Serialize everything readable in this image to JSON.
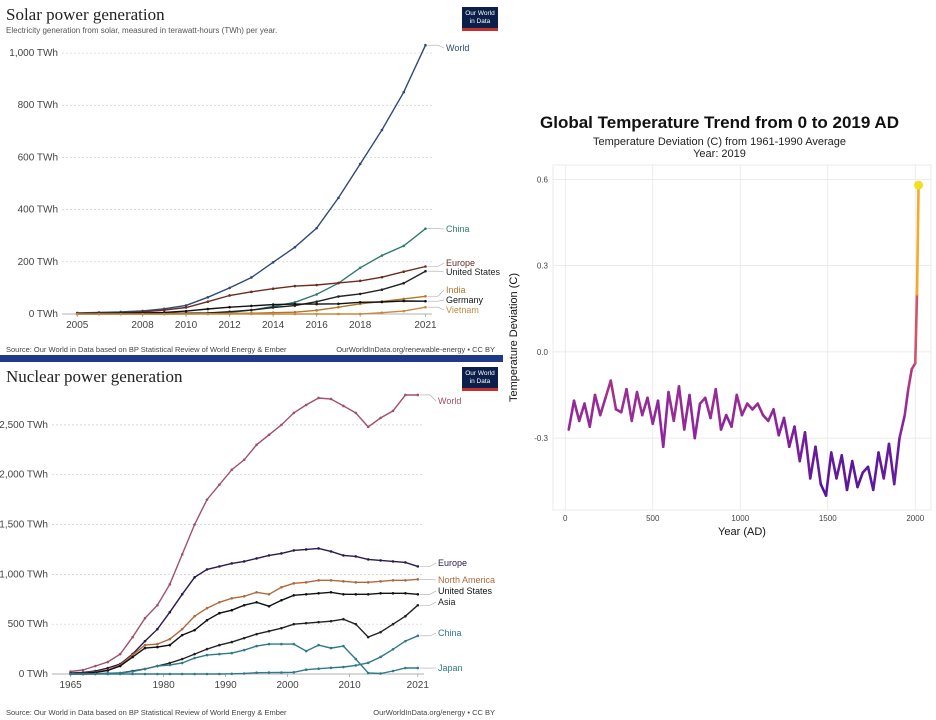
{
  "chart_data": [
    {
      "type": "line",
      "title": "Solar power generation",
      "subtitle": "Electricity generation from solar, measured in terawatt-hours (TWh) per year.",
      "source_left": "Source: Our World in Data based on BP Statistical Review of World Energy & Ember",
      "source_right": "OurWorldInData.org/renewable-energy • CC BY",
      "logo": [
        "Our World",
        "in Data"
      ],
      "x": [
        2005,
        2006,
        2007,
        2008,
        2009,
        2010,
        2011,
        2012,
        2013,
        2014,
        2015,
        2016,
        2017,
        2018,
        2019,
        2020,
        2021
      ],
      "xticks": [
        "2005",
        "2008",
        "2010",
        "2012",
        "2014",
        "2016",
        "2018",
        "2021"
      ],
      "xtick_values": [
        2005,
        2008,
        2010,
        2012,
        2014,
        2016,
        2018,
        2021
      ],
      "yticks": [
        "0 TWh",
        "200 TWh",
        "400 TWh",
        "600 TWh",
        "800 TWh",
        "1,000 TWh"
      ],
      "ytick_values": [
        0,
        200,
        400,
        600,
        800,
        1000
      ],
      "xlim": [
        2004.3,
        2021.3
      ],
      "ylim": [
        0,
        1050
      ],
      "series": [
        {
          "name": "World",
          "color": "#2d4b75",
          "values": [
            4,
            6,
            8,
            12,
            20,
            33,
            64,
            100,
            140,
            198,
            256,
            329,
            445,
            575,
            705,
            850,
            1030
          ]
        },
        {
          "name": "China",
          "color": "#2f7a6e",
          "values": [
            0,
            0,
            0,
            0,
            0,
            1,
            3,
            6,
            15,
            29,
            45,
            75,
            118,
            177,
            224,
            261,
            327
          ]
        },
        {
          "name": "Europe",
          "color": "#6b2d1f",
          "values": [
            2,
            3,
            4,
            8,
            15,
            25,
            47,
            71,
            85,
            97,
            107,
            111,
            119,
            127,
            141,
            162,
            182
          ]
        },
        {
          "name": "United States",
          "color": "#222222",
          "values": [
            1,
            1,
            1,
            2,
            2,
            3,
            4,
            9,
            15,
            25,
            32,
            47,
            67,
            77,
            93,
            118,
            164
          ]
        },
        {
          "name": "India",
          "color": "#b0762a",
          "values": [
            0,
            0,
            0,
            0,
            0,
            0,
            1,
            2,
            3,
            5,
            7,
            14,
            26,
            39,
            48,
            58,
            68
          ]
        },
        {
          "name": "Germany",
          "color": "#111111",
          "values": [
            1,
            2,
            3,
            4,
            6,
            11,
            19,
            26,
            31,
            36,
            38,
            38,
            39,
            45,
            46,
            50,
            49
          ]
        },
        {
          "name": "Vietnam",
          "color": "#c98a3a",
          "values": [
            0,
            0,
            0,
            0,
            0,
            0,
            0,
            0,
            0,
            0,
            0,
            0,
            0,
            0,
            5,
            11,
            26
          ]
        }
      ]
    },
    {
      "type": "line",
      "title": "Nuclear power generation",
      "source_left": "Source: Our World in Data based on BP Statistical Review of World Energy & Ember",
      "source_right": "OurWorldInData.org/energy • CC BY",
      "logo": [
        "Our World",
        "in Data"
      ],
      "x": [
        1965,
        1967,
        1969,
        1971,
        1973,
        1975,
        1977,
        1979,
        1981,
        1983,
        1985,
        1987,
        1989,
        1991,
        1993,
        1995,
        1997,
        1999,
        2001,
        2003,
        2005,
        2007,
        2009,
        2011,
        2013,
        2015,
        2017,
        2019,
        2021
      ],
      "xticks": [
        "1965",
        "1980",
        "1990",
        "2000",
        "2010",
        "2021"
      ],
      "xtick_values": [
        1965,
        1980,
        1990,
        2000,
        2010,
        2021
      ],
      "yticks": [
        "0 TWh",
        "500 TWh",
        "1,000 TWh",
        "1,500 TWh",
        "2,000 TWh",
        "2,500 TWh"
      ],
      "ytick_values": [
        0,
        500,
        1000,
        1500,
        2000,
        2500
      ],
      "xlim": [
        1962,
        2022
      ],
      "ylim": [
        0,
        2850
      ],
      "series": [
        {
          "name": "World",
          "color": "#a0506a",
          "values": [
            25,
            40,
            80,
            120,
            200,
            370,
            560,
            690,
            900,
            1200,
            1500,
            1750,
            1900,
            2050,
            2150,
            2300,
            2400,
            2500,
            2620,
            2700,
            2770,
            2760,
            2690,
            2620,
            2480,
            2570,
            2640,
            2800,
            2800
          ]
        },
        {
          "name": "Europe",
          "color": "#2a1a4a",
          "values": [
            10,
            15,
            30,
            60,
            100,
            200,
            330,
            450,
            620,
            800,
            970,
            1050,
            1080,
            1110,
            1130,
            1160,
            1190,
            1210,
            1240,
            1250,
            1260,
            1230,
            1190,
            1180,
            1150,
            1140,
            1130,
            1120,
            1080
          ]
        },
        {
          "name": "North America",
          "color": "#b06a3a",
          "values": [
            5,
            10,
            20,
            40,
            90,
            190,
            290,
            300,
            350,
            450,
            580,
            660,
            720,
            760,
            780,
            820,
            800,
            870,
            910,
            920,
            940,
            940,
            930,
            920,
            920,
            930,
            940,
            940,
            950
          ]
        },
        {
          "name": "United States",
          "color": "#111111",
          "values": [
            4,
            8,
            15,
            35,
            80,
            170,
            260,
            270,
            290,
            390,
            440,
            540,
            610,
            640,
            690,
            720,
            680,
            740,
            790,
            800,
            810,
            820,
            800,
            800,
            800,
            810,
            810,
            810,
            800
          ]
        },
        {
          "name": "Asia",
          "color": "#222222",
          "values": [
            0,
            0,
            2,
            5,
            10,
            30,
            50,
            80,
            110,
            150,
            200,
            250,
            290,
            320,
            360,
            400,
            430,
            460,
            500,
            510,
            520,
            530,
            550,
            500,
            370,
            420,
            500,
            580,
            690
          ]
        },
        {
          "name": "China",
          "color": "#2f7a8a",
          "values": [
            0,
            0,
            0,
            0,
            0,
            0,
            0,
            0,
            0,
            0,
            0,
            0,
            0,
            2,
            5,
            13,
            14,
            15,
            17,
            43,
            53,
            62,
            70,
            86,
            112,
            171,
            248,
            330,
            383
          ]
        },
        {
          "name": "Japan",
          "color": "#2f7a8a",
          "values": [
            0,
            0,
            1,
            8,
            10,
            25,
            50,
            80,
            90,
            110,
            160,
            190,
            200,
            210,
            240,
            280,
            300,
            300,
            300,
            230,
            290,
            260,
            280,
            150,
            10,
            5,
            30,
            60,
            60
          ]
        }
      ]
    },
    {
      "type": "line",
      "title": "Global Temperature Trend from 0 to 2019 AD",
      "subtitle": "Temperature Deviation (C) from 1961-1990 Average",
      "subtitle2": "Year:  2019",
      "xlabel": "Year (AD)",
      "ylabel": "Temperature Deviation (C)",
      "xticks": [
        "0",
        "500",
        "1000",
        "1500",
        "2000"
      ],
      "xtick_values": [
        0,
        500,
        1000,
        1500,
        2000
      ],
      "yticks": [
        "-0.3",
        "0.0",
        "0.3",
        "0.6"
      ],
      "ytick_values": [
        -0.3,
        0.0,
        0.3,
        0.6
      ],
      "xlim": [
        -70,
        2090
      ],
      "ylim": [
        -0.55,
        0.65
      ],
      "grid": true,
      "color_scale": [
        "#3a0f9a",
        "#8a24a0",
        "#d04a6a",
        "#f6a02a",
        "#f0e020"
      ],
      "highlight_point": {
        "x": 2019,
        "y": 0.58,
        "color": "#f0e020"
      },
      "x": [
        20,
        50,
        80,
        110,
        140,
        170,
        200,
        230,
        260,
        290,
        320,
        350,
        380,
        410,
        440,
        470,
        500,
        530,
        560,
        590,
        620,
        650,
        680,
        710,
        740,
        770,
        800,
        830,
        860,
        890,
        920,
        950,
        980,
        1010,
        1040,
        1070,
        1100,
        1130,
        1160,
        1190,
        1220,
        1250,
        1280,
        1310,
        1340,
        1370,
        1400,
        1430,
        1460,
        1490,
        1520,
        1550,
        1580,
        1610,
        1640,
        1670,
        1700,
        1730,
        1760,
        1790,
        1820,
        1850,
        1880,
        1910,
        1940,
        1960,
        1980,
        2000,
        2010,
        2019
      ],
      "values": [
        -0.27,
        -0.17,
        -0.24,
        -0.18,
        -0.26,
        -0.15,
        -0.22,
        -0.16,
        -0.1,
        -0.2,
        -0.21,
        -0.13,
        -0.24,
        -0.14,
        -0.22,
        -0.16,
        -0.25,
        -0.17,
        -0.33,
        -0.14,
        -0.24,
        -0.12,
        -0.27,
        -0.15,
        -0.3,
        -0.18,
        -0.16,
        -0.23,
        -0.13,
        -0.27,
        -0.22,
        -0.26,
        -0.15,
        -0.22,
        -0.18,
        -0.2,
        -0.18,
        -0.22,
        -0.24,
        -0.2,
        -0.29,
        -0.23,
        -0.33,
        -0.26,
        -0.38,
        -0.28,
        -0.44,
        -0.33,
        -0.46,
        -0.5,
        -0.35,
        -0.44,
        -0.36,
        -0.48,
        -0.38,
        -0.47,
        -0.42,
        -0.4,
        -0.48,
        -0.35,
        -0.44,
        -0.32,
        -0.46,
        -0.3,
        -0.22,
        -0.13,
        -0.06,
        -0.04,
        0.2,
        0.58
      ]
    }
  ]
}
